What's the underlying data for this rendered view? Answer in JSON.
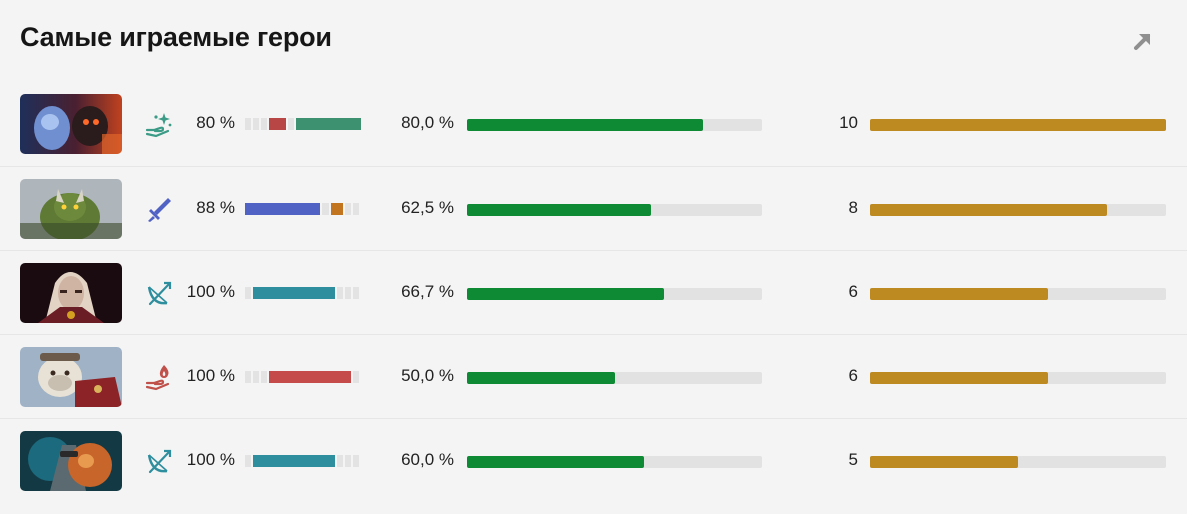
{
  "title": "Самые играемые герои",
  "colors": {
    "winrate_bar": "#0e8a34",
    "games_bar": "#bd8a21",
    "track": "#e2e2e2"
  },
  "heroes": [
    {
      "portrait_icon": "hero-portrait-blue-red",
      "role_icon": "support-hand-icon",
      "role_percent": "80 %",
      "role_segments": [
        {
          "fraction": 0.05,
          "color": "#e3e3e3"
        },
        {
          "fraction": 0.05,
          "color": "#e3e3e3"
        },
        {
          "fraction": 0.05,
          "color": "#e3e3e3"
        },
        {
          "fraction": 0.15,
          "color": "#b84645"
        },
        {
          "fraction": 0.05,
          "color": "#e3e3e3"
        },
        {
          "fraction": 0.58,
          "color": "#3d9170"
        }
      ],
      "winrate": "80,0 %",
      "winrate_value": 80.0,
      "games": "10",
      "games_value": 10
    },
    {
      "portrait_icon": "hero-portrait-green",
      "role_icon": "sword-icon",
      "role_percent": "88 %",
      "role_segments": [
        {
          "fraction": 0.64,
          "color": "#5063c4"
        },
        {
          "fraction": 0.06,
          "color": "#e3e3e3"
        },
        {
          "fraction": 0.1,
          "color": "#c2741e"
        },
        {
          "fraction": 0.05,
          "color": "#e3e3e3"
        },
        {
          "fraction": 0.05,
          "color": "#e3e3e3"
        }
      ],
      "winrate": "62,5 %",
      "winrate_value": 62.5,
      "games": "8",
      "games_value": 8
    },
    {
      "portrait_icon": "hero-portrait-pale",
      "role_icon": "bow-icon",
      "role_percent": "100 %",
      "role_segments": [
        {
          "fraction": 0.05,
          "color": "#e3e3e3"
        },
        {
          "fraction": 0.7,
          "color": "#2f8e9e"
        },
        {
          "fraction": 0.05,
          "color": "#e3e3e3"
        },
        {
          "fraction": 0.05,
          "color": "#e3e3e3"
        },
        {
          "fraction": 0.05,
          "color": "#e3e3e3"
        }
      ],
      "winrate": "66,7 %",
      "winrate_value": 66.7,
      "games": "6",
      "games_value": 6
    },
    {
      "portrait_icon": "hero-portrait-white-red",
      "role_icon": "fire-hand-icon",
      "role_percent": "100 %",
      "role_segments": [
        {
          "fraction": 0.05,
          "color": "#e3e3e3"
        },
        {
          "fraction": 0.05,
          "color": "#e3e3e3"
        },
        {
          "fraction": 0.05,
          "color": "#e3e3e3"
        },
        {
          "fraction": 0.7,
          "color": "#c54a4a"
        },
        {
          "fraction": 0.05,
          "color": "#e3e3e3"
        }
      ],
      "winrate": "50,0 %",
      "winrate_value": 50.0,
      "games": "6",
      "games_value": 6
    },
    {
      "portrait_icon": "hero-portrait-teal-orange",
      "role_icon": "bow-icon",
      "role_percent": "100 %",
      "role_segments": [
        {
          "fraction": 0.05,
          "color": "#e3e3e3"
        },
        {
          "fraction": 0.7,
          "color": "#2f8e9e"
        },
        {
          "fraction": 0.05,
          "color": "#e3e3e3"
        },
        {
          "fraction": 0.05,
          "color": "#e3e3e3"
        },
        {
          "fraction": 0.05,
          "color": "#e3e3e3"
        }
      ],
      "winrate": "60,0 %",
      "winrate_value": 60.0,
      "games": "5",
      "games_value": 5
    }
  ],
  "scales": {
    "winrate_max": 100,
    "games_max": 10
  }
}
